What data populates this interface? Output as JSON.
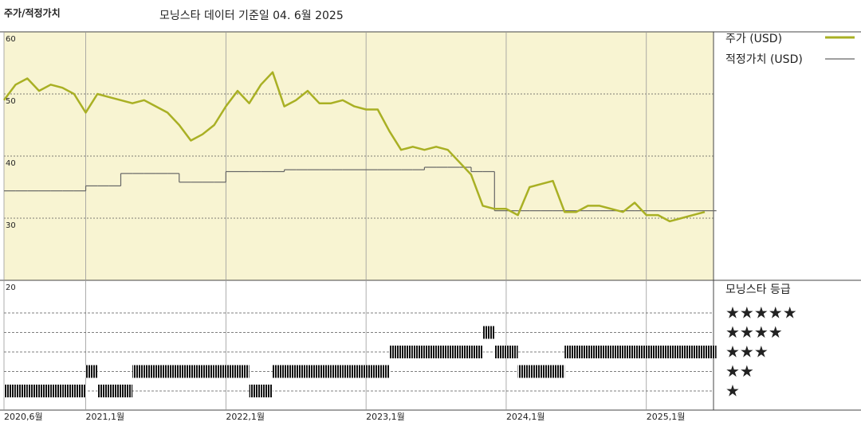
{
  "chart_data": {
    "type": "line",
    "title": "주가/적정가치",
    "subtitle": "모닝스타 데이터 기준일 04. 6월 2025",
    "x": [
      "2020-06",
      "2020-07",
      "2020-08",
      "2020-09",
      "2020-10",
      "2020-11",
      "2020-12",
      "2021-01",
      "2021-02",
      "2021-03",
      "2021-04",
      "2021-05",
      "2021-06",
      "2021-07",
      "2021-08",
      "2021-09",
      "2021-10",
      "2021-11",
      "2021-12",
      "2022-01",
      "2022-02",
      "2022-03",
      "2022-04",
      "2022-05",
      "2022-06",
      "2022-07",
      "2022-08",
      "2022-09",
      "2022-10",
      "2022-11",
      "2022-12",
      "2023-01",
      "2023-02",
      "2023-03",
      "2023-04",
      "2023-05",
      "2023-06",
      "2023-07",
      "2023-08",
      "2023-09",
      "2023-10",
      "2023-11",
      "2023-12",
      "2024-01",
      "2024-02",
      "2024-03",
      "2024-04",
      "2024-05",
      "2024-06",
      "2024-07",
      "2024-08",
      "2024-09",
      "2024-10",
      "2024-11",
      "2024-12",
      "2025-01",
      "2025-02",
      "2025-03",
      "2025-04",
      "2025-05",
      "2025-06"
    ],
    "xlim": [
      "2020-06",
      "2025-06"
    ],
    "xticks": [
      {
        "value": "2020-06",
        "label": "2020,6월"
      },
      {
        "value": "2021-01",
        "label": "2021,1월"
      },
      {
        "value": "2022-01",
        "label": "2022,1월"
      },
      {
        "value": "2023-01",
        "label": "2023,1월"
      },
      {
        "value": "2024-01",
        "label": "2024,1월"
      },
      {
        "value": "2025-01",
        "label": "2025,1월"
      }
    ],
    "ylim": [
      20,
      60
    ],
    "yticks": [
      20,
      30,
      40,
      50,
      60
    ],
    "grid": true,
    "series": [
      {
        "name": "주가 (USD)",
        "color": "#a9b024",
        "values": [
          49,
          51.5,
          52.5,
          50.5,
          51.5,
          51,
          50,
          47,
          50,
          49.5,
          49,
          48.5,
          49,
          48,
          47,
          45,
          42.5,
          43.5,
          45,
          48,
          50.5,
          48.5,
          51.5,
          53.5,
          48,
          49,
          50.5,
          48.5,
          48.5,
          49,
          48,
          47.5,
          47.5,
          44,
          41,
          41.5,
          41,
          41.5,
          41,
          39,
          37,
          32,
          31.5,
          31.5,
          30.5,
          35,
          35.5,
          36,
          31,
          31,
          32,
          32,
          31.5,
          31,
          32.5,
          30.5,
          30.5,
          29.5,
          30,
          30.5,
          31
        ]
      },
      {
        "name": "적정가치 (USD)",
        "color": "#666666",
        "step": "post",
        "values": [
          34.4,
          34.4,
          34.4,
          34.4,
          34.4,
          34.4,
          34.4,
          35.2,
          35.2,
          35.2,
          37.2,
          37.2,
          37.2,
          37.2,
          37.2,
          35.8,
          35.8,
          35.8,
          35.8,
          37.5,
          37.5,
          37.5,
          37.5,
          37.5,
          37.8,
          37.8,
          37.8,
          37.8,
          37.8,
          37.8,
          37.8,
          37.8,
          37.8,
          37.8,
          37.8,
          37.8,
          38.2,
          38.2,
          38.2,
          38.2,
          37.5,
          37.5,
          31.2,
          31.2,
          31.2,
          31.2,
          31.2,
          31.2,
          31.2,
          31.2,
          31.2,
          31.2,
          31.2,
          31.2,
          31.2,
          31.2,
          31.2,
          31.2,
          31.2,
          31.2,
          31.2
        ]
      }
    ],
    "rating": {
      "title": "모닝스타 등급",
      "labels": [
        "★",
        "★★",
        "★★★",
        "★★★★",
        "★★★★★"
      ],
      "values": [
        1,
        1,
        1,
        1,
        1,
        1,
        1,
        2,
        1,
        1,
        1,
        2,
        2,
        2,
        2,
        2,
        2,
        2,
        2,
        2,
        2,
        1,
        1,
        2,
        2,
        2,
        2,
        2,
        2,
        2,
        2,
        2,
        2,
        3,
        3,
        3,
        3,
        3,
        3,
        3,
        3,
        4,
        3,
        3,
        2,
        2,
        2,
        2,
        3,
        3,
        3,
        3,
        3,
        3,
        3,
        3,
        3,
        3,
        3,
        3,
        3
      ]
    }
  }
}
